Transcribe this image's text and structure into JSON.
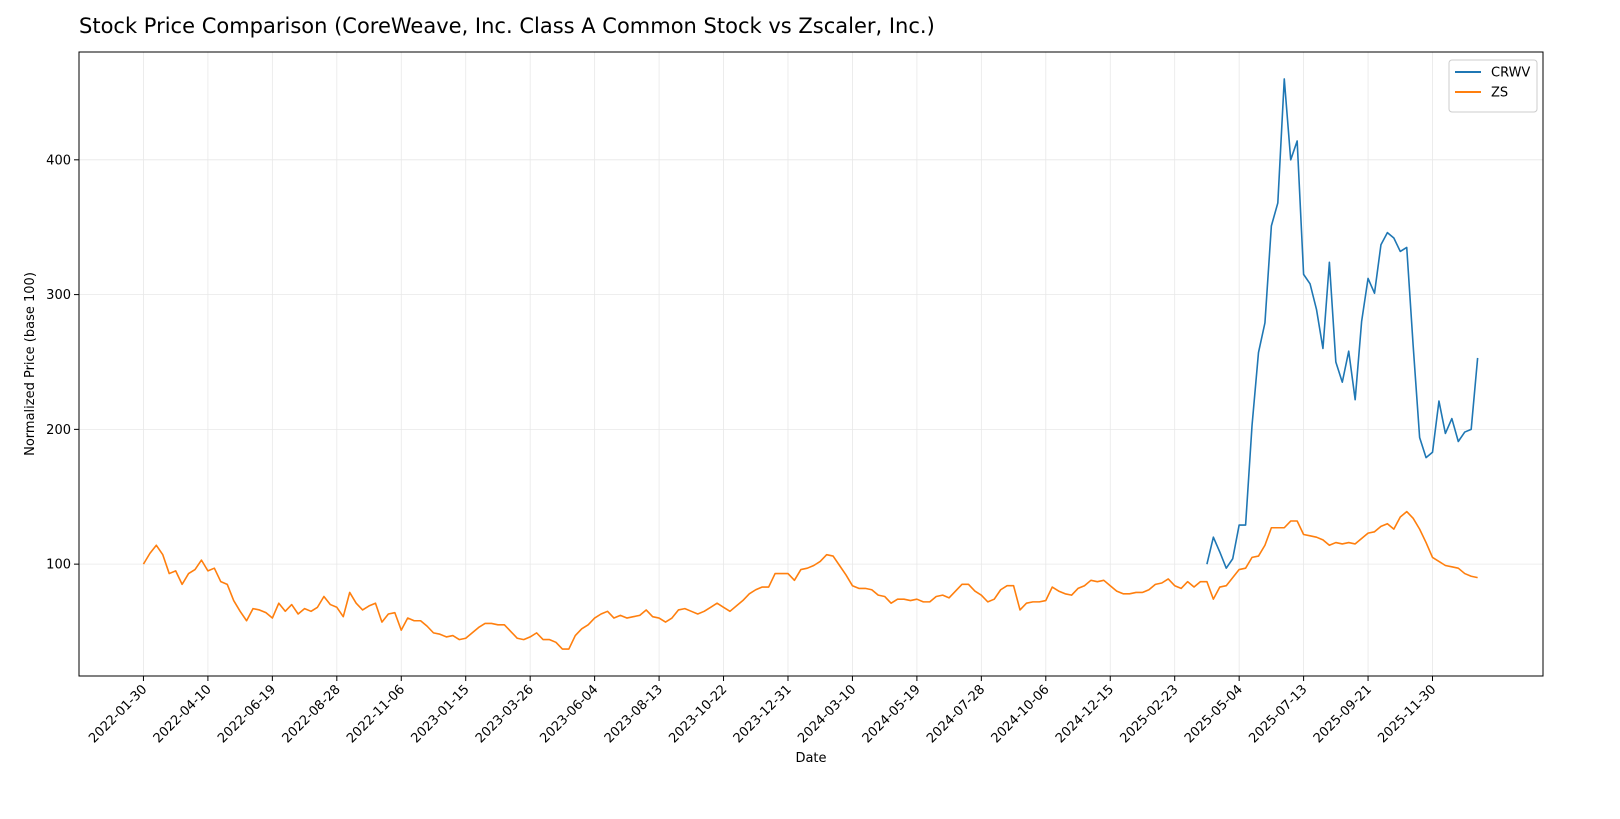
{
  "chart_data": {
    "type": "line",
    "title": "Stock Price Comparison (CoreWeave, Inc. Class A Common Stock vs Zscaler, Inc.)",
    "xlabel": "Date",
    "ylabel": "Normalized Price (base 100)",
    "x": [
      "2022-01-30",
      "2022-02-06",
      "2022-02-13",
      "2022-02-20",
      "2022-02-27",
      "2022-03-06",
      "2022-03-13",
      "2022-03-20",
      "2022-03-27",
      "2022-04-03",
      "2022-04-10",
      "2022-04-17",
      "2022-04-24",
      "2022-05-01",
      "2022-05-08",
      "2022-05-15",
      "2022-05-22",
      "2022-05-29",
      "2022-06-05",
      "2022-06-12",
      "2022-06-19",
      "2022-06-26",
      "2022-07-03",
      "2022-07-10",
      "2022-07-17",
      "2022-07-24",
      "2022-07-31",
      "2022-08-07",
      "2022-08-14",
      "2022-08-21",
      "2022-08-28",
      "2022-09-04",
      "2022-09-11",
      "2022-09-18",
      "2022-09-25",
      "2022-10-02",
      "2022-10-09",
      "2022-10-16",
      "2022-10-23",
      "2022-10-30",
      "2022-11-06",
      "2022-11-13",
      "2022-11-20",
      "2022-11-27",
      "2022-12-04",
      "2022-12-11",
      "2022-12-18",
      "2022-12-25",
      "2023-01-01",
      "2023-01-08",
      "2023-01-15",
      "2023-01-22",
      "2023-01-29",
      "2023-02-05",
      "2023-02-12",
      "2023-02-19",
      "2023-02-26",
      "2023-03-05",
      "2023-03-12",
      "2023-03-19",
      "2023-03-26",
      "2023-04-02",
      "2023-04-09",
      "2023-04-16",
      "2023-04-23",
      "2023-04-30",
      "2023-05-07",
      "2023-05-14",
      "2023-05-21",
      "2023-05-28",
      "2023-06-04",
      "2023-06-11",
      "2023-06-18",
      "2023-06-25",
      "2023-07-02",
      "2023-07-09",
      "2023-07-16",
      "2023-07-23",
      "2023-07-30",
      "2023-08-06",
      "2023-08-13",
      "2023-08-20",
      "2023-08-27",
      "2023-09-03",
      "2023-09-10",
      "2023-09-17",
      "2023-09-24",
      "2023-10-01",
      "2023-10-08",
      "2023-10-15",
      "2023-10-22",
      "2023-10-29",
      "2023-11-05",
      "2023-11-12",
      "2023-11-19",
      "2023-11-26",
      "2023-12-03",
      "2023-12-10",
      "2023-12-17",
      "2023-12-24",
      "2023-12-31",
      "2024-01-07",
      "2024-01-14",
      "2024-01-21",
      "2024-01-28",
      "2024-02-04",
      "2024-02-11",
      "2024-02-18",
      "2024-02-25",
      "2024-03-03",
      "2024-03-10",
      "2024-03-17",
      "2024-03-24",
      "2024-03-31",
      "2024-04-07",
      "2024-04-14",
      "2024-04-21",
      "2024-04-28",
      "2024-05-05",
      "2024-05-12",
      "2024-05-19",
      "2024-05-26",
      "2024-06-02",
      "2024-06-09",
      "2024-06-16",
      "2024-06-23",
      "2024-06-30",
      "2024-07-07",
      "2024-07-14",
      "2024-07-21",
      "2024-07-28",
      "2024-08-04",
      "2024-08-11",
      "2024-08-18",
      "2024-08-25",
      "2024-09-01",
      "2024-09-08",
      "2024-09-15",
      "2024-09-22",
      "2024-09-29",
      "2024-10-06",
      "2024-10-13",
      "2024-10-20",
      "2024-10-27",
      "2024-11-03",
      "2024-11-10",
      "2024-11-17",
      "2024-11-24",
      "2024-12-01",
      "2024-12-08",
      "2024-12-15",
      "2024-12-22",
      "2024-12-29",
      "2025-01-05",
      "2025-01-12",
      "2025-01-19",
      "2025-01-26",
      "2025-02-02",
      "2025-02-09",
      "2025-02-16",
      "2025-02-23",
      "2025-03-02",
      "2025-03-09",
      "2025-03-16",
      "2025-03-23",
      "2025-03-30",
      "2025-04-06",
      "2025-04-13",
      "2025-04-20",
      "2025-04-27",
      "2025-05-04",
      "2025-05-11",
      "2025-05-18",
      "2025-05-25",
      "2025-06-01",
      "2025-06-08",
      "2025-06-15",
      "2025-06-22",
      "2025-06-29",
      "2025-07-06",
      "2025-07-13",
      "2025-07-20",
      "2025-07-27",
      "2025-08-03",
      "2025-08-10",
      "2025-08-17",
      "2025-08-24",
      "2025-08-31",
      "2025-09-07",
      "2025-09-14",
      "2025-09-21",
      "2025-09-28",
      "2025-10-05",
      "2025-10-12",
      "2025-10-19",
      "2025-10-26",
      "2025-11-02",
      "2025-11-09",
      "2025-11-16",
      "2025-11-23",
      "2025-11-30",
      "2025-12-07",
      "2025-12-14",
      "2025-12-21",
      "2025-12-28",
      "2026-01-04",
      "2026-01-11",
      "2026-01-18"
    ],
    "series": [
      {
        "name": "CRWV",
        "color": "#1f77b4",
        "values": [
          null,
          null,
          null,
          null,
          null,
          null,
          null,
          null,
          null,
          null,
          null,
          null,
          null,
          null,
          null,
          null,
          null,
          null,
          null,
          null,
          null,
          null,
          null,
          null,
          null,
          null,
          null,
          null,
          null,
          null,
          null,
          null,
          null,
          null,
          null,
          null,
          null,
          null,
          null,
          null,
          null,
          null,
          null,
          null,
          null,
          null,
          null,
          null,
          null,
          null,
          null,
          null,
          null,
          null,
          null,
          null,
          null,
          null,
          null,
          null,
          null,
          null,
          null,
          null,
          null,
          null,
          null,
          null,
          null,
          null,
          null,
          null,
          null,
          null,
          null,
          null,
          null,
          null,
          null,
          null,
          null,
          null,
          null,
          null,
          null,
          null,
          null,
          null,
          null,
          null,
          null,
          null,
          null,
          null,
          null,
          null,
          null,
          null,
          null,
          null,
          null,
          null,
          null,
          null,
          null,
          null,
          null,
          null,
          null,
          null,
          null,
          null,
          null,
          null,
          null,
          null,
          null,
          null,
          null,
          null,
          null,
          null,
          null,
          null,
          null,
          null,
          null,
          null,
          null,
          null,
          null,
          null,
          null,
          null,
          null,
          null,
          null,
          null,
          null,
          null,
          null,
          null,
          null,
          null,
          null,
          null,
          null,
          null,
          null,
          null,
          null,
          null,
          null,
          null,
          null,
          null,
          null,
          null,
          null,
          null,
          null,
          null,
          null,
          null,
          null,
          100,
          120,
          109,
          97,
          104,
          129,
          129,
          203,
          257,
          279,
          351,
          368,
          460,
          400,
          414,
          315,
          308,
          289,
          260,
          324,
          250,
          235,
          258,
          222,
          280,
          312,
          301,
          337,
          346,
          342,
          332,
          335,
          262,
          194,
          179,
          183,
          221,
          197,
          208,
          191,
          198,
          200,
          253
        ]
      },
      {
        "name": "ZS",
        "color": "#ff7f0e",
        "values": [
          100,
          108,
          114,
          107,
          93,
          95,
          85,
          93,
          96,
          103,
          95,
          97,
          87,
          85,
          73,
          65,
          58,
          67,
          66,
          64,
          60,
          71,
          65,
          70,
          63,
          67,
          65,
          68,
          76,
          70,
          68,
          61,
          79,
          71,
          66,
          69,
          71,
          57,
          63,
          64,
          51,
          60,
          58,
          58,
          54,
          49,
          48,
          46,
          47,
          44,
          45,
          49,
          53,
          56,
          56,
          55,
          55,
          50,
          45,
          44,
          46,
          49,
          44,
          44,
          42,
          37,
          37,
          47,
          52,
          55,
          60,
          63,
          65,
          60,
          62,
          60,
          61,
          62,
          66,
          61,
          60,
          57,
          60,
          66,
          67,
          65,
          63,
          65,
          68,
          71,
          68,
          65,
          69,
          73,
          78,
          81,
          83,
          83,
          93,
          93,
          93,
          88,
          96,
          97,
          99,
          102,
          107,
          106,
          99,
          92,
          84,
          82,
          82,
          81,
          77,
          76,
          71,
          74,
          74,
          73,
          74,
          72,
          72,
          76,
          77,
          75,
          80,
          85,
          85,
          80,
          77,
          72,
          74,
          81,
          84,
          84,
          66,
          71,
          72,
          72,
          73,
          83,
          80,
          78,
          77,
          82,
          84,
          88,
          87,
          88,
          84,
          80,
          78,
          78,
          79,
          79,
          81,
          85,
          86,
          89,
          84,
          82,
          87,
          83,
          87,
          87,
          74,
          83,
          84,
          90,
          96,
          97,
          105,
          106,
          114,
          127,
          127,
          127,
          132,
          132,
          122,
          121,
          120,
          118,
          114,
          116,
          115,
          116,
          115,
          119,
          123,
          124,
          128,
          130,
          126,
          135,
          139,
          134,
          126,
          116,
          105,
          102,
          99,
          98,
          97,
          93,
          91,
          90
        ]
      }
    ],
    "xlim": [
      "2021-11-21",
      "2026-03-30"
    ],
    "xticks": [
      "2022-01-30",
      "2022-04-10",
      "2022-06-19",
      "2022-08-28",
      "2022-11-06",
      "2023-01-15",
      "2023-03-26",
      "2023-06-04",
      "2023-08-13",
      "2023-10-22",
      "2023-12-31",
      "2024-03-10",
      "2024-05-19",
      "2024-07-28",
      "2024-10-06",
      "2024-12-15",
      "2025-02-23",
      "2025-05-04",
      "2025-07-13",
      "2025-09-21",
      "2025-11-30"
    ],
    "ylim": [
      17,
      480
    ],
    "yticks": [
      100,
      200,
      300,
      400
    ],
    "grid": true,
    "legend": "upper-right"
  }
}
